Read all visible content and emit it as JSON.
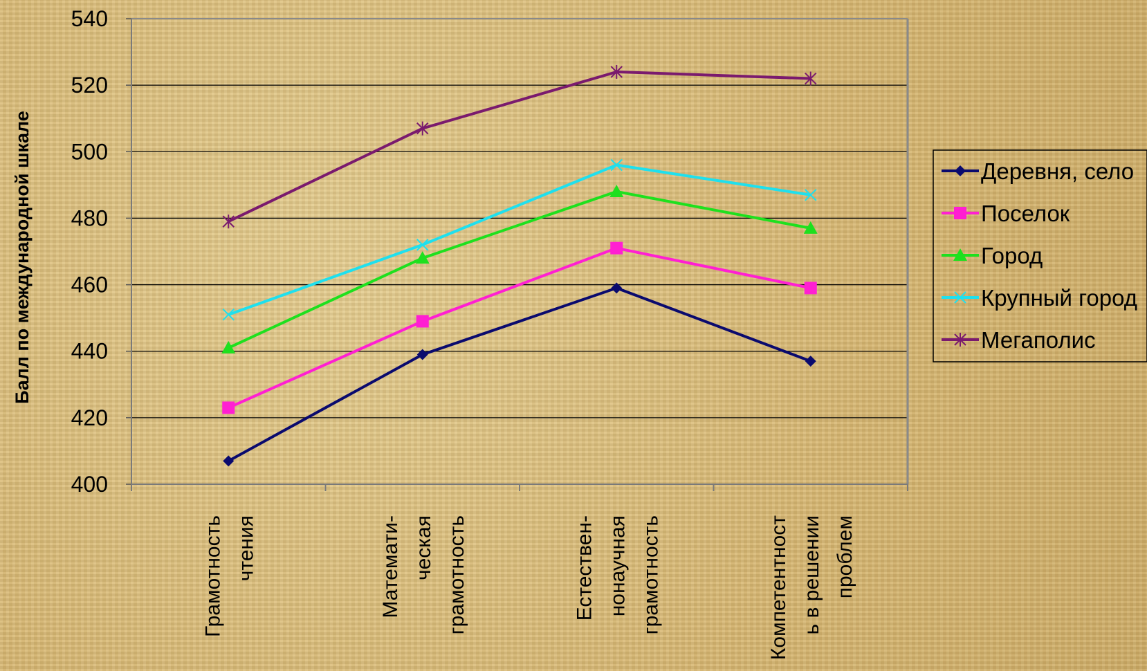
{
  "chart_data": {
    "type": "line",
    "ylabel": "Балл по международной шкале",
    "ylim": [
      400,
      540
    ],
    "yticks": [
      400,
      420,
      440,
      460,
      480,
      500,
      520,
      540
    ],
    "categories": [
      [
        "Грамотность",
        "чтения"
      ],
      [
        "Математи-",
        "ческая",
        "грамотность"
      ],
      [
        "Естествен-",
        "нонаучная",
        "грамотность"
      ],
      [
        "Компетентност",
        "ь в решении",
        "проблем"
      ]
    ],
    "series": [
      {
        "name": "Деревня, село",
        "color": "#0a0a6e",
        "marker": "diamond",
        "values": [
          407,
          439,
          459,
          437
        ]
      },
      {
        "name": "Поселок",
        "color": "#ff1fd2",
        "marker": "square",
        "values": [
          423,
          449,
          471,
          459
        ]
      },
      {
        "name": "Город",
        "color": "#1ee01e",
        "marker": "triangle",
        "values": [
          441,
          468,
          488,
          477
        ]
      },
      {
        "name": "Крупный город",
        "color": "#1ee0ee",
        "marker": "x",
        "values": [
          451,
          472,
          496,
          487
        ]
      },
      {
        "name": "Мегаполис",
        "color": "#7a1a6e",
        "marker": "star",
        "values": [
          479,
          507,
          524,
          522
        ]
      }
    ],
    "grid": true,
    "legend_position": "right"
  }
}
